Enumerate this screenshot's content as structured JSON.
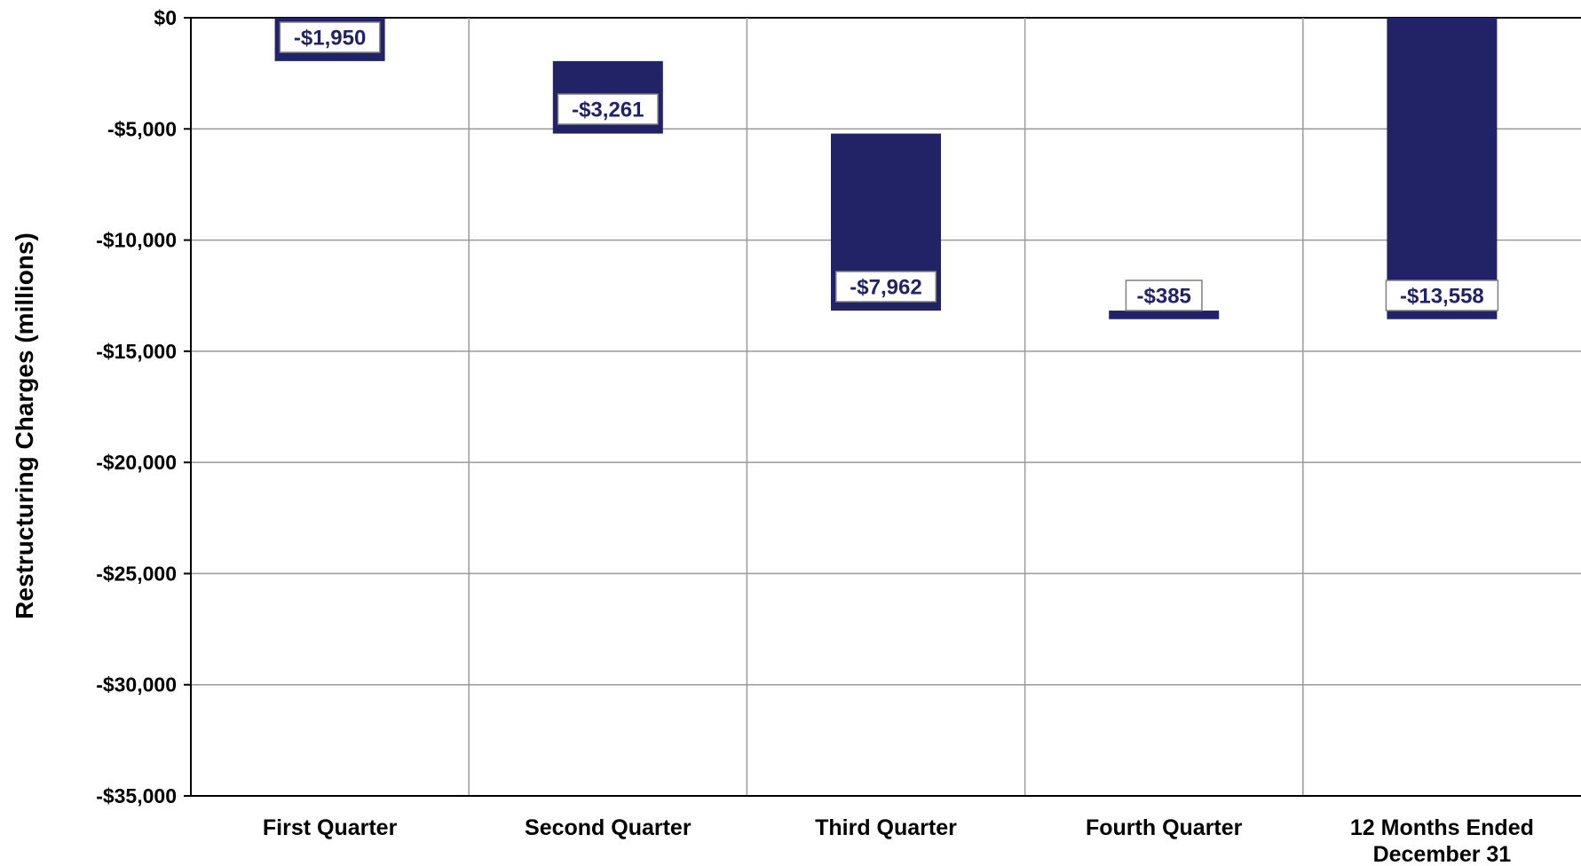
{
  "chart_data": {
    "type": "bar",
    "variant": "waterfall",
    "title": "",
    "xlabel": "",
    "ylabel": "Restructuring Charges  (millions)",
    "categories": [
      "First Quarter",
      "Second Quarter",
      "Third Quarter",
      "Fourth Quarter",
      "12 Months Ended December 31"
    ],
    "category_lines": [
      [
        "First Quarter"
      ],
      [
        "Second Quarter"
      ],
      [
        "Third Quarter"
      ],
      [
        "Fourth Quarter"
      ],
      [
        "12 Months Ended",
        "December 31"
      ]
    ],
    "values": [
      -1950,
      -3261,
      -7962,
      -385,
      -13558
    ],
    "bar_ranges": [
      [
        0,
        -1950
      ],
      [
        -1950,
        -5211
      ],
      [
        -5211,
        -13173
      ],
      [
        -13173,
        -13558
      ],
      [
        0,
        -13558
      ]
    ],
    "data_labels": [
      "-$1,950",
      "-$3,261",
      "-$7,962",
      "-$385",
      "-$13,558"
    ],
    "ylim": [
      -35000,
      0
    ],
    "yticks": [
      0,
      -5000,
      -10000,
      -15000,
      -20000,
      -25000,
      -30000,
      -35000
    ],
    "ytick_labels": [
      "$0",
      "-$5,000",
      "-$10,000",
      "-$15,000",
      "-$20,000",
      "-$25,000",
      "-$30,000",
      "-$35,000"
    ],
    "grid": true,
    "legend": "none",
    "colors": {
      "bar": "#222266",
      "label_text": "#222266",
      "label_border": "#7f7f7f",
      "grid": "#9a9a9a"
    }
  }
}
